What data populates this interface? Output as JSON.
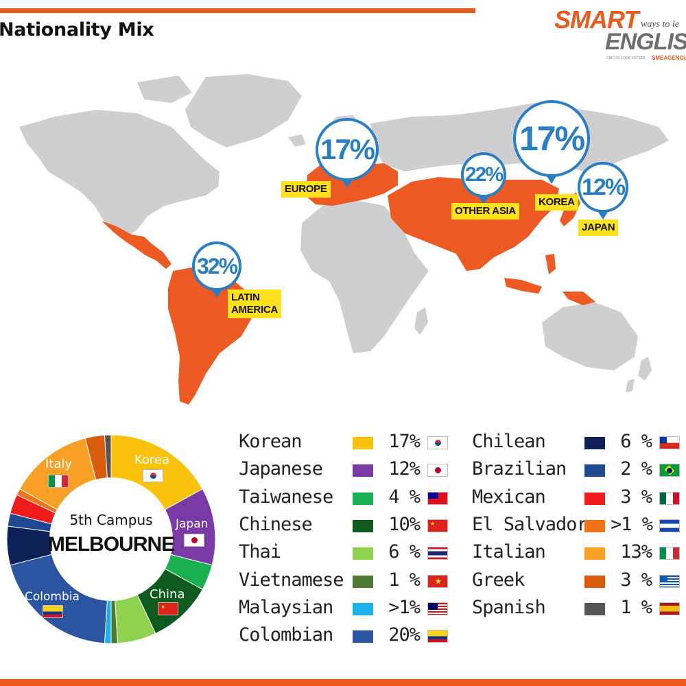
{
  "header": {
    "title": "Nationality Mix"
  },
  "logo": {
    "line1": "SMART",
    "tagline": "ways to le",
    "line2": "ENGLIS",
    "fineprint": "CRICOS CODE 03718D",
    "sub": "SMEAGENGL"
  },
  "map_labels": [
    {
      "id": "latin-america",
      "percent": "32%",
      "label_line1": "LATIN",
      "label_line2": "AMERICA"
    },
    {
      "id": "europe",
      "percent": "17%",
      "label_line1": "EUROPE",
      "label_line2": ""
    },
    {
      "id": "other-asia",
      "percent": "22%",
      "label_line1": "OTHER ASIA",
      "label_line2": ""
    },
    {
      "id": "korea",
      "percent": "17%",
      "label_line1": "KOREA",
      "label_line2": ""
    },
    {
      "id": "japan",
      "percent": "12%",
      "label_line1": "JAPAN",
      "label_line2": ""
    }
  ],
  "donut": {
    "center_line1": "5th Campus",
    "center_line2": "MELBOURNE",
    "segment_labels": [
      {
        "text": "Korea",
        "flag": "korea"
      },
      {
        "text": "Japan",
        "flag": "japan"
      },
      {
        "text": "China",
        "flag": "china"
      },
      {
        "text": "Colombia",
        "flag": "colombia"
      },
      {
        "text": "Italy",
        "flag": "italy"
      }
    ]
  },
  "chart_data": {
    "type": "pie",
    "style": "donut",
    "title": "Nationality Mix",
    "subtitle": "5th Campus MELBOURNE",
    "series": [
      {
        "name": "Korean",
        "display": "17%",
        "value": 17,
        "color": "#fbc20c",
        "flag": "korea"
      },
      {
        "name": "Japanese",
        "display": "12%",
        "value": 12,
        "color": "#7a3aa6",
        "flag": "japan"
      },
      {
        "name": "Taiwanese",
        "display": "4 %",
        "value": 4,
        "color": "#19b050",
        "flag": "taiwan"
      },
      {
        "name": "Chinese",
        "display": "10%",
        "value": 10,
        "color": "#0f5a1f",
        "flag": "china"
      },
      {
        "name": "Thai",
        "display": "6 %",
        "value": 6,
        "color": "#8ed24f",
        "flag": "thailand"
      },
      {
        "name": "Vietnamese",
        "display": "1 %",
        "value": 1,
        "color": "#4d7a33",
        "flag": "vietnam"
      },
      {
        "name": "Malaysian",
        "display": ">1%",
        "value": 1,
        "color": "#1cb0ec",
        "flag": "malaysia"
      },
      {
        "name": "Colombian",
        "display": "20%",
        "value": 20,
        "color": "#2b55a1",
        "flag": "colombia"
      },
      {
        "name": "Chilean",
        "display": "6 %",
        "value": 6,
        "color": "#0d2158",
        "flag": "chile"
      },
      {
        "name": "Brazilian",
        "display": "2 %",
        "value": 2,
        "color": "#1e4890",
        "flag": "brazil"
      },
      {
        "name": "Mexican",
        "display": "3 %",
        "value": 3,
        "color": "#ef1c1c",
        "flag": "mexico"
      },
      {
        "name": "El Salvador",
        "display": ">1 %",
        "value": 1,
        "color": "#f2731a",
        "flag": "elsalvador"
      },
      {
        "name": "Italian",
        "display": "13%",
        "value": 13,
        "color": "#f8a026",
        "flag": "italy"
      },
      {
        "name": "Greek",
        "display": "3 %",
        "value": 3,
        "color": "#d95c0d",
        "flag": "greece"
      },
      {
        "name": "Spanish",
        "display": "1 %",
        "value": 1,
        "color": "#555555",
        "flag": "spain"
      }
    ]
  }
}
